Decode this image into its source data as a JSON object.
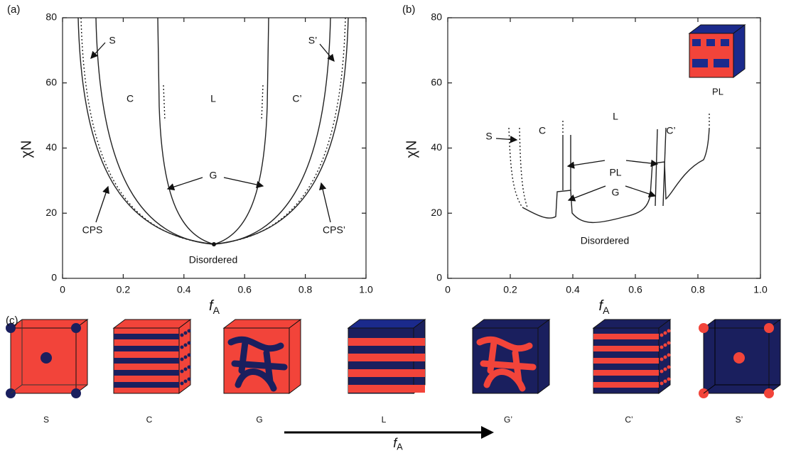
{
  "panels": [
    {
      "label": "(a)",
      "xlim": [
        0,
        1
      ],
      "ylim": [
        0,
        80
      ],
      "xticks": [
        0,
        0.2,
        0.4,
        0.6,
        0.8,
        {
          "value": 1,
          "label": "1.0"
        }
      ],
      "yticks": [
        0,
        20,
        40,
        60,
        80
      ],
      "ylabel": "χN",
      "xlabel": {
        "main": "f",
        "sub": "A"
      },
      "regions": [
        "S",
        "C",
        "L",
        "C’",
        "S’",
        "G",
        "CPS",
        "CPS’",
        "Disordered"
      ]
    },
    {
      "label": "(b)",
      "xlim": [
        0,
        1
      ],
      "ylim": [
        0,
        80
      ],
      "xticks": [
        0,
        0.2,
        0.4,
        0.6,
        0.8,
        {
          "value": 1,
          "label": "1.0"
        }
      ],
      "yticks": [
        0,
        20,
        40,
        60,
        80
      ],
      "ylabel": "χN",
      "xlabel": {
        "main": "f",
        "sub": "A"
      },
      "regions": [
        "S",
        "C",
        "L",
        "C’",
        "PL",
        "G",
        "Disordered"
      ],
      "inset": "PL"
    }
  ],
  "panel_c": {
    "label": "(c)",
    "phases": [
      "S",
      "C",
      "G",
      "L",
      "G’",
      "C’",
      "S’"
    ],
    "arrow_label": {
      "main": "f",
      "sub": "A"
    }
  }
}
